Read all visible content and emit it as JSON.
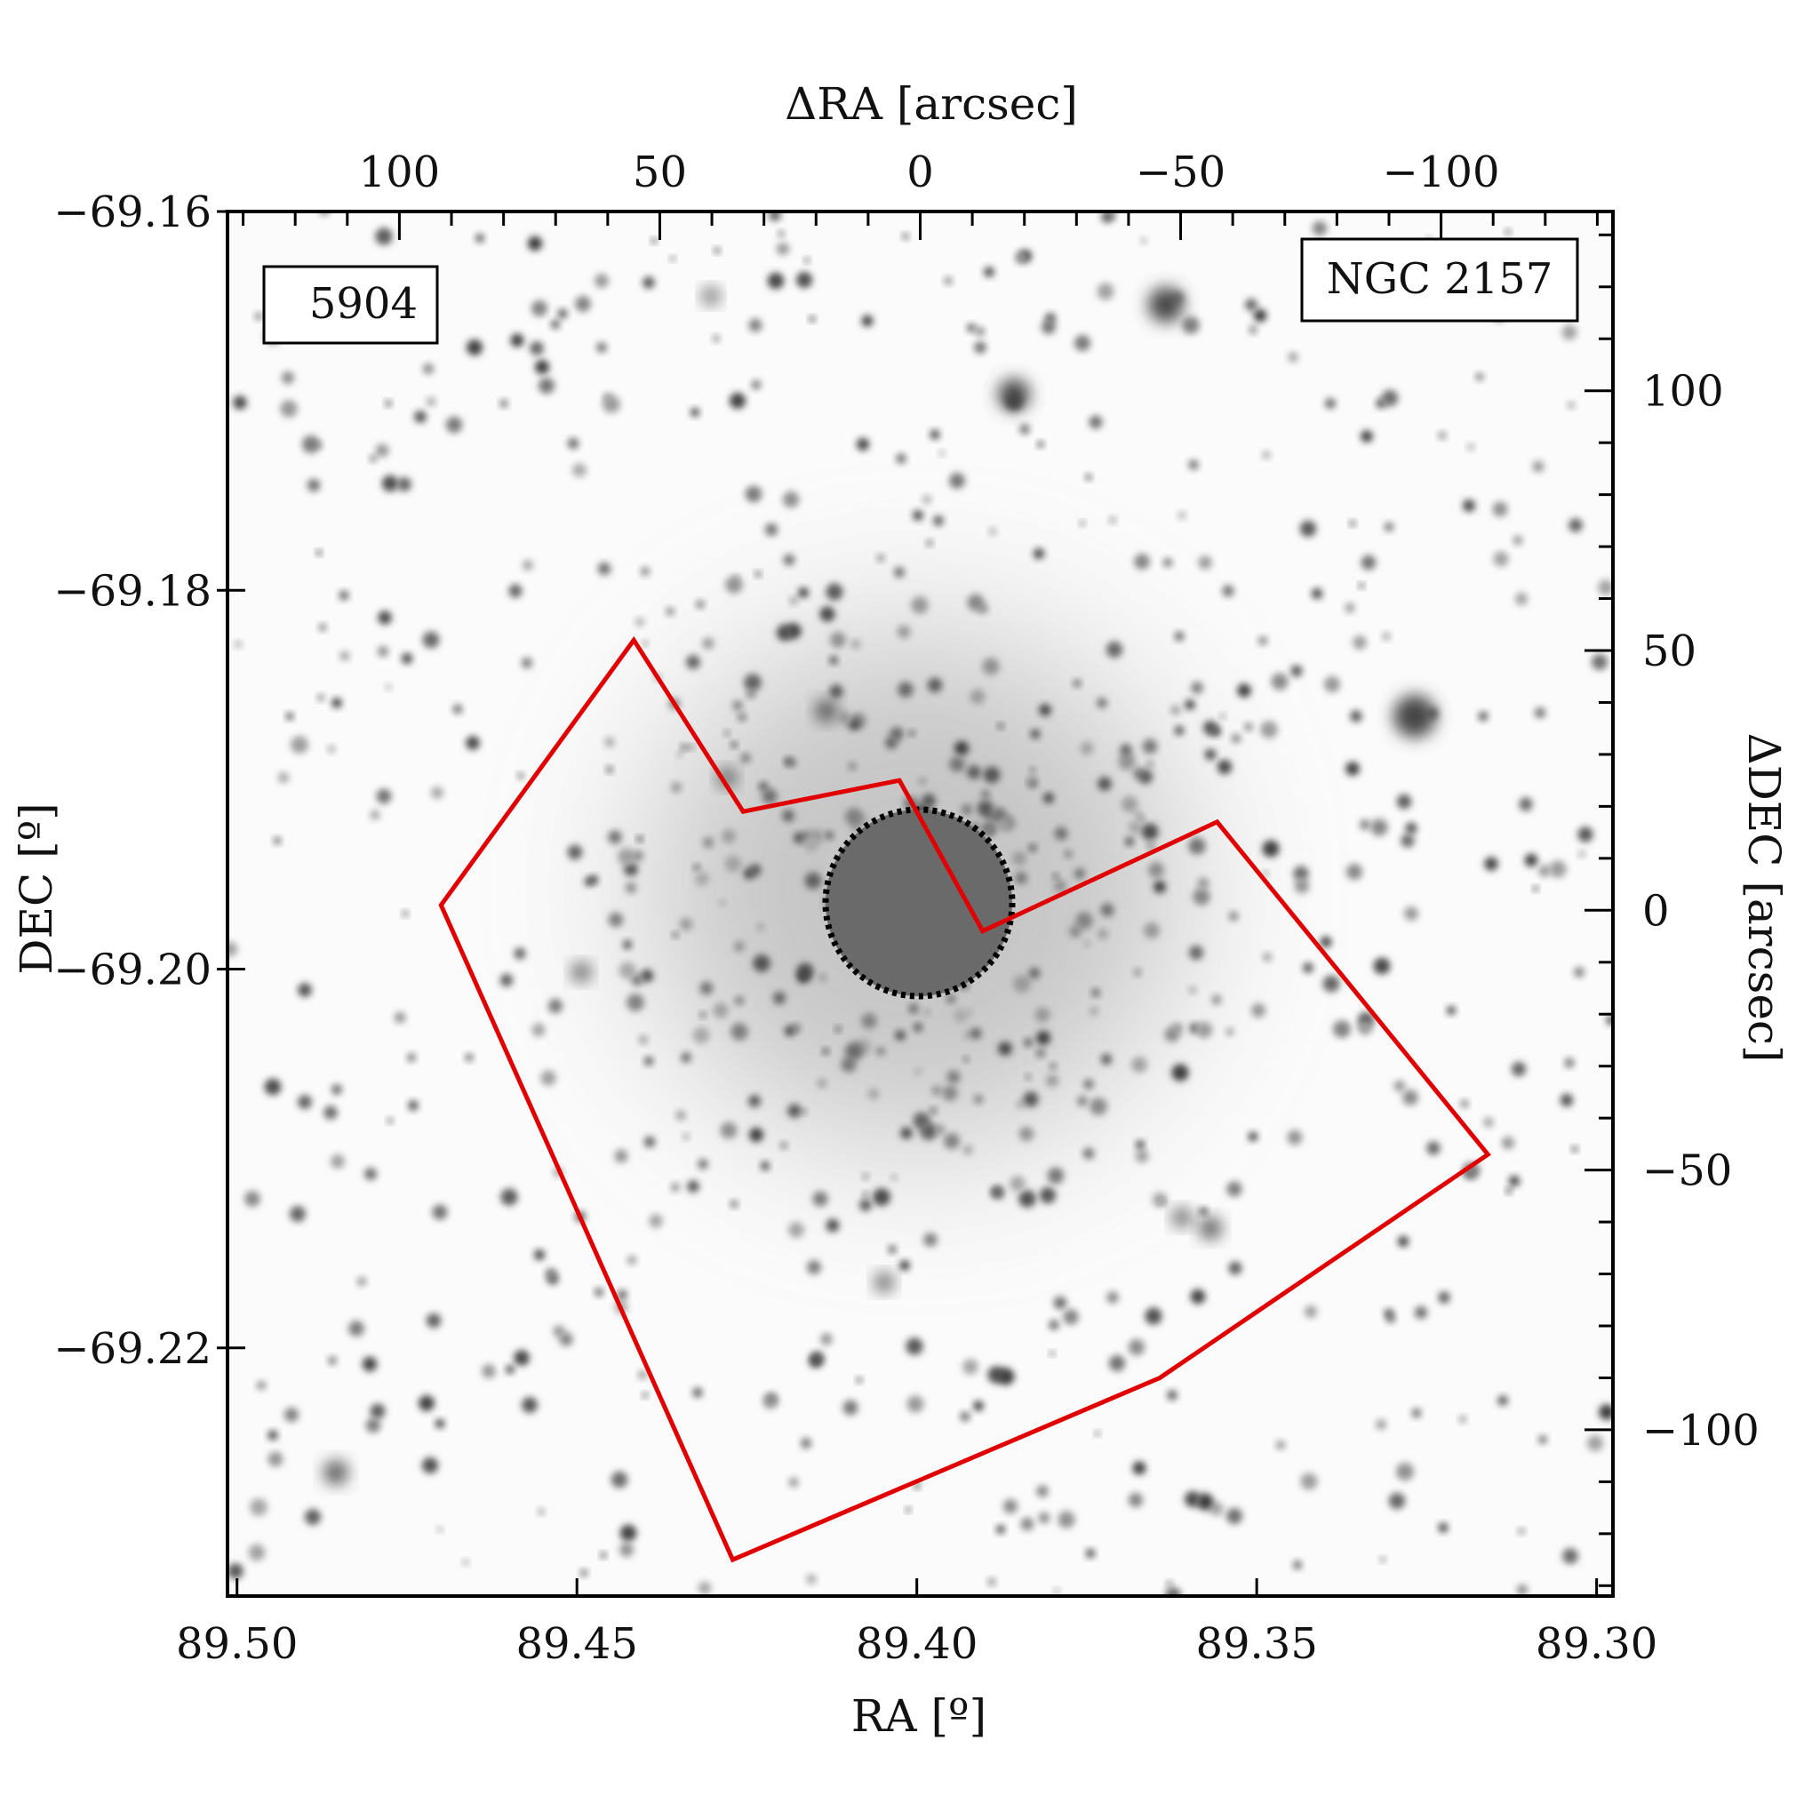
{
  "chart_data": {
    "type": "image",
    "title": "NGC 2157",
    "object_label": "NGC 2157",
    "field_label": "5904",
    "field_label_color": "#ff0000",
    "footprint_color": "#e00000",
    "bottom_axis": {
      "label": "RA [º]",
      "ticks": [
        89.5,
        89.45,
        89.4,
        89.35,
        89.3
      ],
      "tick_labels": [
        "89.50",
        "89.45",
        "89.40",
        "89.35",
        "89.30"
      ],
      "range": [
        89.5014,
        89.2976
      ]
    },
    "left_axis": {
      "label": "DEC [º]",
      "ticks": [
        -69.16,
        -69.18,
        -69.2,
        -69.22
      ],
      "tick_labels": [
        "−69.16",
        "−69.18",
        "−69.20",
        "−69.22"
      ],
      "range": [
        -69.2331,
        -69.16
      ]
    },
    "top_axis": {
      "label": "ΔRA [arcsec]",
      "ticks": [
        100,
        50,
        0,
        -50,
        -100
      ],
      "tick_labels": [
        "100",
        "50",
        "0",
        "−50",
        "−100"
      ],
      "minor_step": 10,
      "range": [
        133,
        -133
      ]
    },
    "right_axis": {
      "label": "ΔDEC [arcsec]",
      "ticks": [
        100,
        50,
        0,
        -50,
        -100
      ],
      "tick_labels": [
        "100",
        "50",
        "0",
        "−50",
        "−100"
      ],
      "minor_step": 10,
      "range": [
        134.5,
        -132
      ]
    },
    "footprint_arcsec": [
      [
        55,
        52
      ],
      [
        34,
        19
      ],
      [
        4,
        25
      ],
      [
        -12,
        -4
      ],
      [
        -57,
        17
      ],
      [
        -109,
        -47
      ],
      [
        -46,
        -90
      ],
      [
        36,
        -125
      ],
      [
        92,
        1
      ]
    ],
    "masked_circle": {
      "center_arcsec": [
        0,
        0
      ],
      "radius_arcsec": 18
    }
  }
}
